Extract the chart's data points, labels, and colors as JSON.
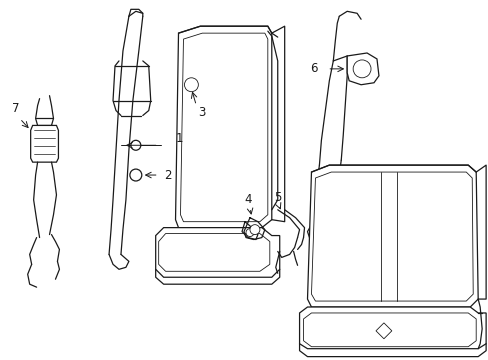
{
  "bg_color": "#ffffff",
  "line_color": "#1a1a1a",
  "lw": 0.9,
  "lw_thin": 0.6,
  "label_fs": 8.5
}
